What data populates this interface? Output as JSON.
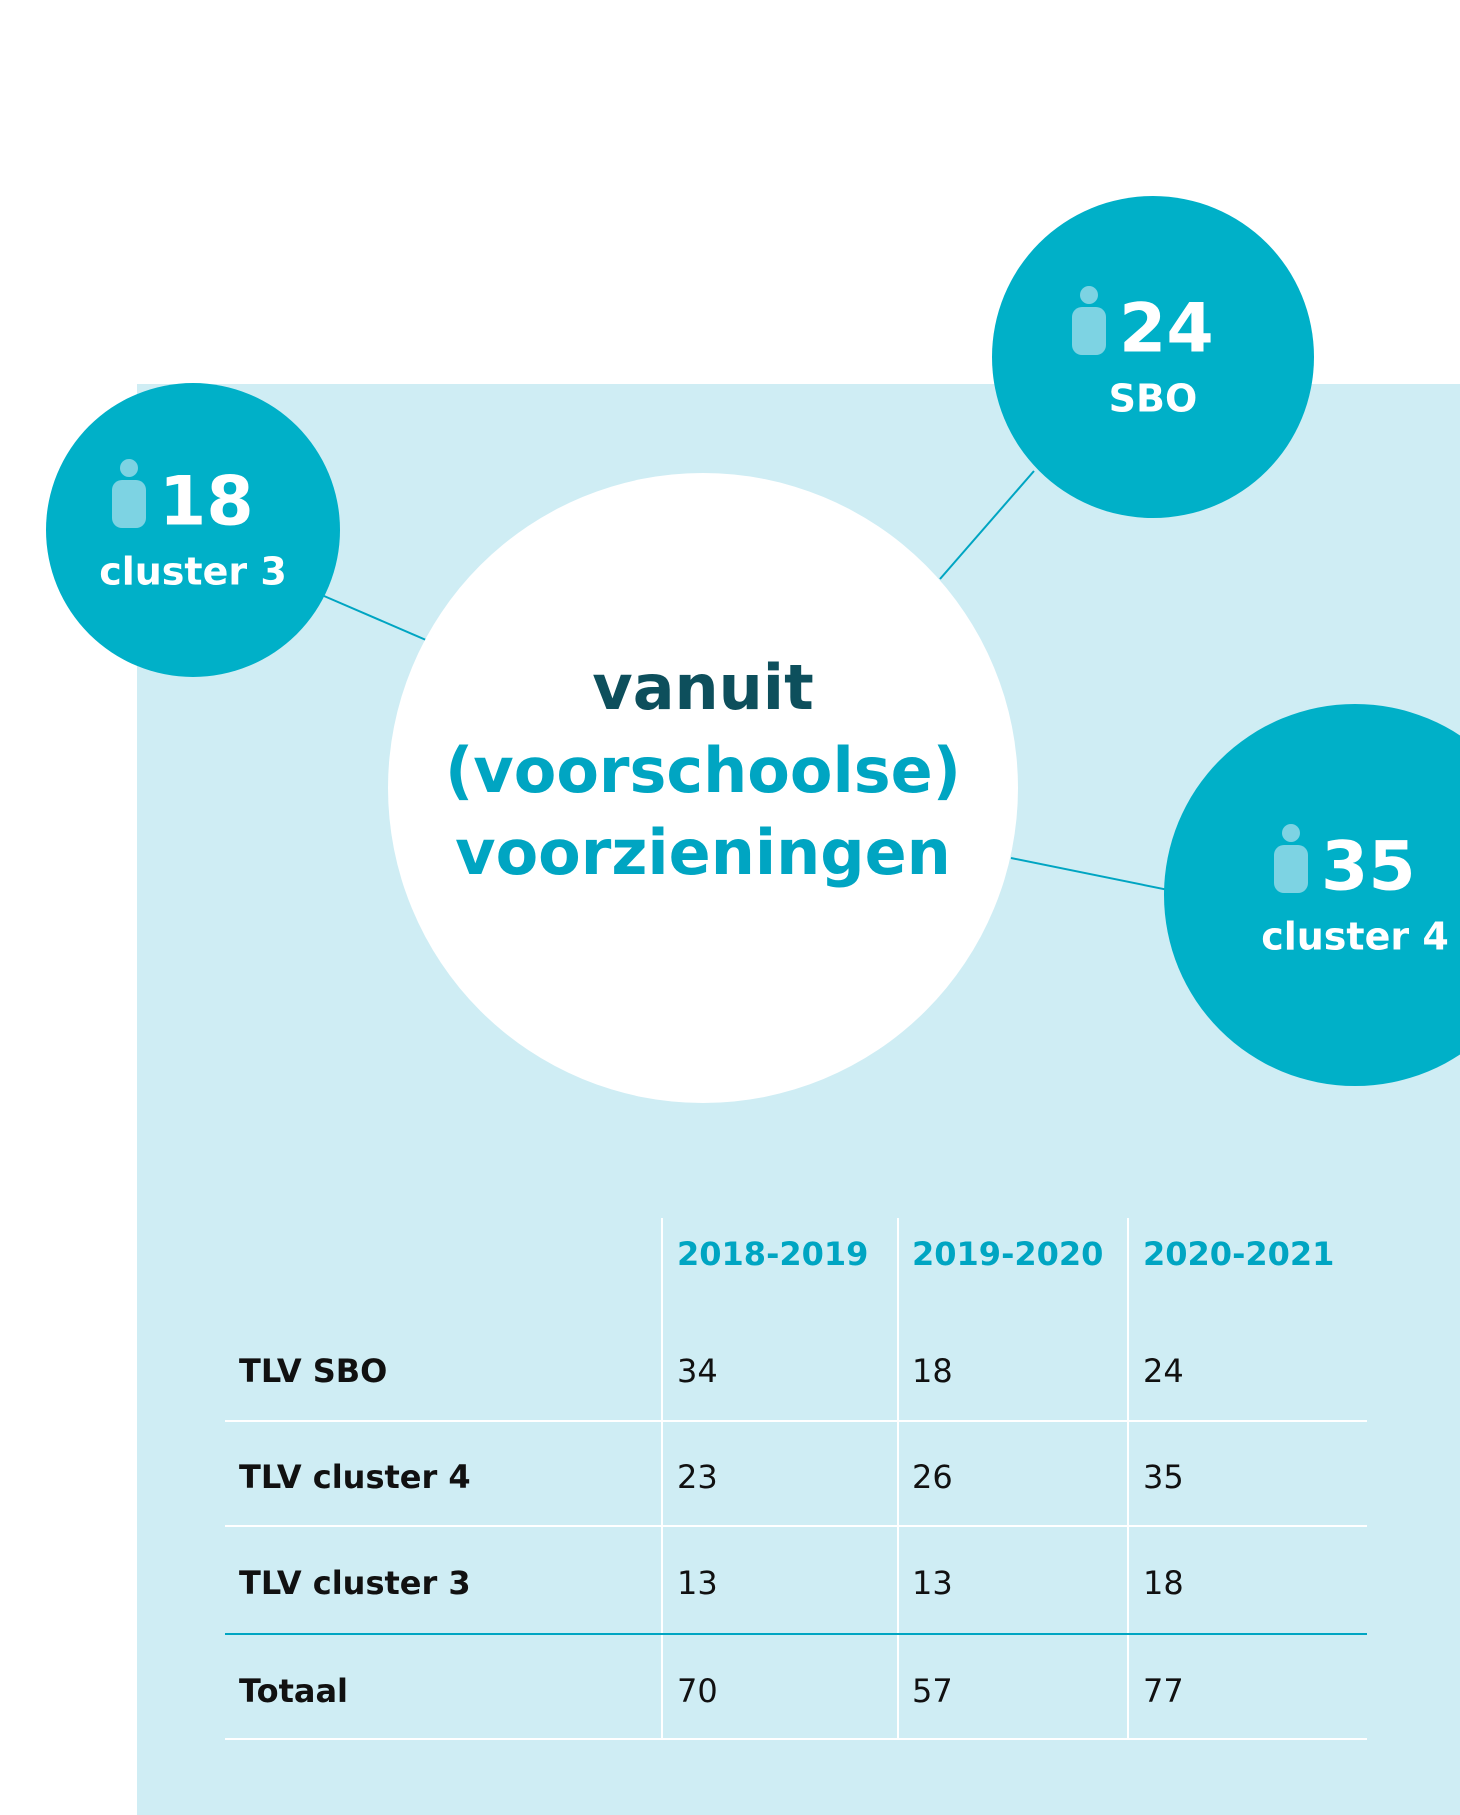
{
  "circles": [
    {
      "number": 18,
      "label": "cluster 3"
    },
    {
      "number": 24,
      "label": "SBO"
    },
    {
      "number": 35,
      "label": "cluster 4"
    }
  ],
  "center": {
    "line1": "vanuit",
    "line2": "(voorschoolse)",
    "line3": "voorzieningen"
  },
  "table": {
    "header": [
      "2018-2019",
      "2019-2020",
      "2020-2021"
    ],
    "rows": [
      [
        "TLV SBO",
        34,
        18,
        24
      ],
      [
        "TLV cluster 4",
        23,
        26,
        35
      ],
      [
        "TLV cluster 3",
        13,
        13,
        18
      ],
      [
        "Totaal",
        70,
        57,
        77
      ]
    ]
  }
}
